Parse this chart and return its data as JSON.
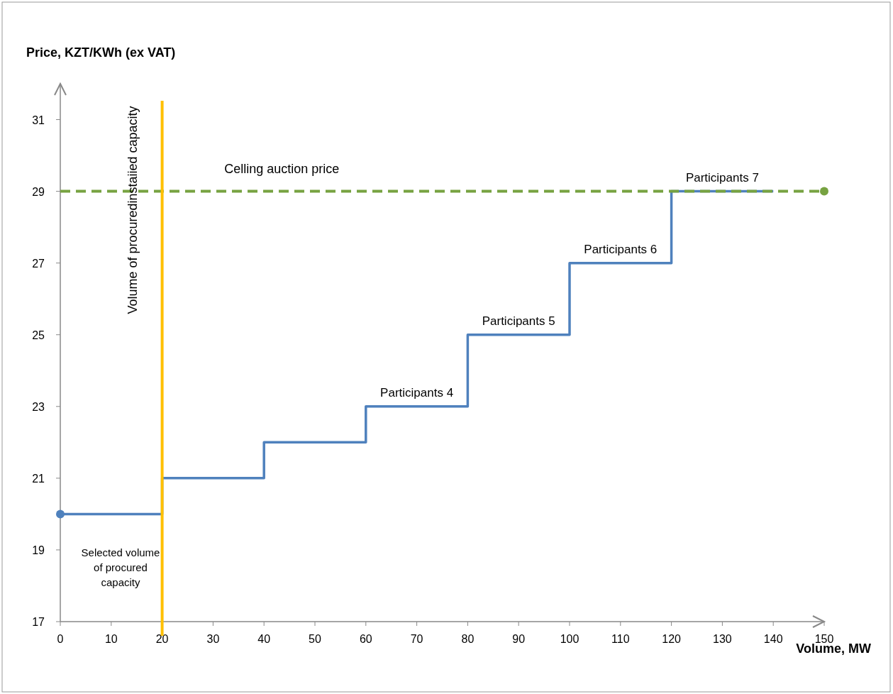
{
  "chart_data": {
    "type": "step",
    "xlabel": "Volume, MW",
    "ylabel": "Price, KZT/KWh (ex VAT)",
    "x": [
      0,
      20,
      40,
      60,
      80,
      100,
      120,
      140
    ],
    "series": [
      {
        "color": "#4f81bd",
        "values": [
          20,
          21,
          22,
          23,
          25,
          27,
          29,
          29
        ]
      },
      {
        "type": "scatter",
        "color": "#4f81bd",
        "x": [
          0
        ],
        "values": [
          20
        ]
      },
      {
        "type": "scatter",
        "color": "#77a241",
        "x": [
          150
        ],
        "values": [
          29
        ]
      }
    ],
    "line_style": "solid",
    "grid": false,
    "xlim": [
      0,
      150
    ],
    "xticks": [
      0,
      10,
      20,
      30,
      40,
      50,
      60,
      70,
      80,
      90,
      100,
      110,
      120,
      130,
      140,
      150
    ],
    "ylim": [
      17,
      32
    ],
    "yticks": [
      17,
      19,
      21,
      23,
      25,
      27,
      29,
      31
    ],
    "ref_lines": [
      {
        "axis": "y",
        "value": 29,
        "label": "Celling auction price",
        "color": "#77a241",
        "line_style": "dashed"
      },
      {
        "axis": "x",
        "value": 20,
        "label": "Volume of procuredinstaiied capacity",
        "color": "#ffc000",
        "line_style": "solid"
      }
    ],
    "annotations": [
      {
        "text": "Participants 4",
        "x": 70,
        "y": 23
      },
      {
        "text": "Participants 5",
        "x": 90,
        "y": 25
      },
      {
        "text": "Participants 6",
        "x": 110,
        "y": 27
      },
      {
        "text": "Participants 7",
        "x": 130,
        "y": 29
      },
      "Selected volume of procured capacity"
    ]
  }
}
